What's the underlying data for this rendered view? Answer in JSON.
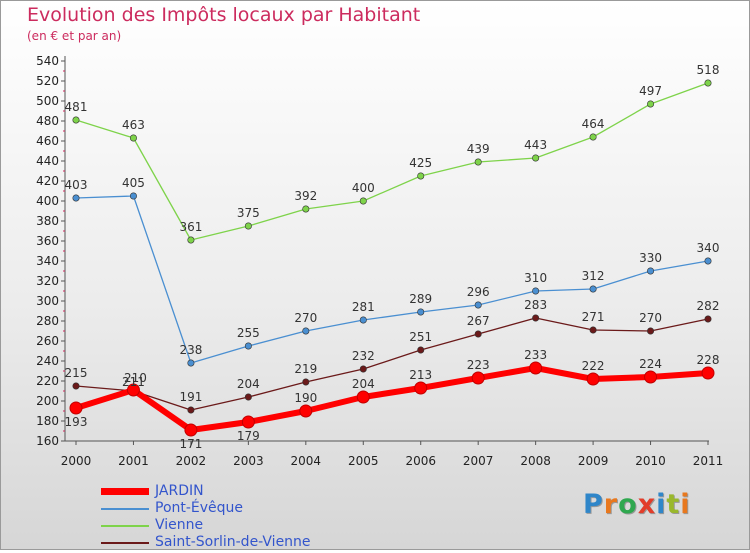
{
  "title": "Evolution des Impôts locaux par Habitant",
  "subtitle": "(en € et par an)",
  "logo": {
    "text": "Proxiti",
    "letter_colors": [
      "#2f86c9",
      "#e8781e",
      "#2fa84f",
      "#e23d2a",
      "#2f86c9",
      "#9ab82c",
      "#e8781e"
    ]
  },
  "chart_data": {
    "type": "line",
    "title": "Evolution des Impôts locaux par Habitant",
    "subtitle": "(en € et par an)",
    "x": [
      "2000",
      "2001",
      "2002",
      "2003",
      "2004",
      "2005",
      "2006",
      "2007",
      "2008",
      "2009",
      "2010",
      "2011"
    ],
    "ylim": [
      160,
      540
    ],
    "yticks": [
      160,
      180,
      200,
      220,
      240,
      260,
      280,
      300,
      320,
      340,
      360,
      380,
      400,
      420,
      440,
      460,
      480,
      500,
      520,
      540
    ],
    "grid": false,
    "legend_position": "bottom-left",
    "series": [
      {
        "name": "JARDIN",
        "color": "#ff0000",
        "values": [
          193,
          211,
          171,
          179,
          190,
          204,
          213,
          223,
          233,
          222,
          224,
          228
        ]
      },
      {
        "name": "Pont-Évêque",
        "color": "#4a8fd1",
        "values": [
          403,
          405,
          238,
          255,
          270,
          281,
          289,
          296,
          310,
          312,
          330,
          340
        ]
      },
      {
        "name": "Vienne",
        "color": "#7ed34a",
        "values": [
          481,
          463,
          361,
          375,
          392,
          400,
          425,
          439,
          443,
          464,
          497,
          518
        ]
      },
      {
        "name": "Saint-Sorlin-de-Vienne",
        "color": "#6b1a1a",
        "values": [
          215,
          210,
          191,
          204,
          219,
          232,
          251,
          267,
          283,
          271,
          270,
          282
        ]
      }
    ]
  }
}
